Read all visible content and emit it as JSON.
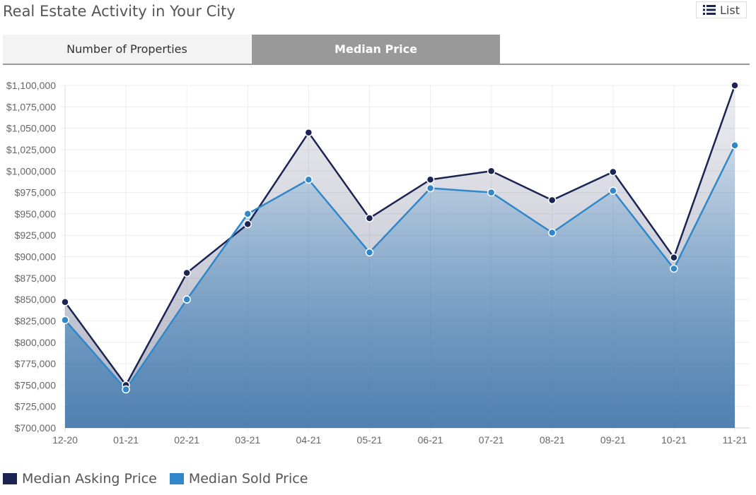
{
  "header": {
    "title": "Real Estate Activity in Your City",
    "list_label": "List"
  },
  "tabs": [
    {
      "label": "Number of Properties",
      "active": false
    },
    {
      "label": "Median Price",
      "active": true
    }
  ],
  "colors": {
    "asking": "#1c2452",
    "sold": "#3087c9"
  },
  "chart_data": {
    "type": "area",
    "title": "",
    "xlabel": "",
    "ylabel": "",
    "categories": [
      "12-20",
      "01-21",
      "02-21",
      "03-21",
      "04-21",
      "05-21",
      "06-21",
      "07-21",
      "08-21",
      "09-21",
      "10-21",
      "11-21"
    ],
    "ylim": [
      700000,
      1100000
    ],
    "ytick_step": 25000,
    "grid": true,
    "legend_position": "bottom-left",
    "series": [
      {
        "name": "Median Asking Price",
        "values": [
          847000,
          750000,
          881000,
          938000,
          1045000,
          945000,
          990000,
          1000000,
          966000,
          999000,
          899000,
          1100000
        ]
      },
      {
        "name": "Median Sold Price",
        "values": [
          826000,
          745000,
          850000,
          950000,
          990000,
          905000,
          980000,
          975000,
          928000,
          977000,
          886000,
          1030000
        ]
      }
    ]
  }
}
